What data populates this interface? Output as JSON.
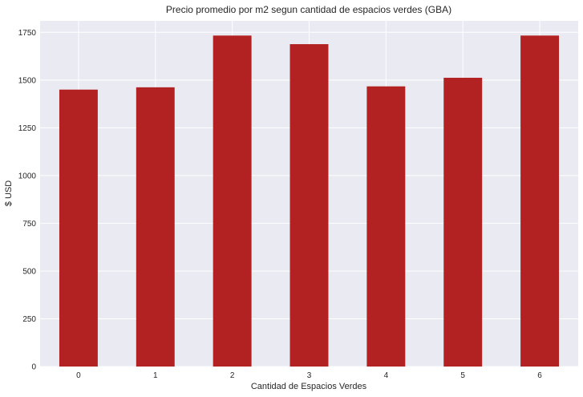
{
  "chart_data": {
    "type": "bar",
    "title": "Precio promedio por m2 segun cantidad de espacios verdes (GBA)",
    "xlabel": "Cantidad de Espacios Verdes",
    "ylabel": "$ USD",
    "categories": [
      "0",
      "1",
      "2",
      "3",
      "4",
      "5",
      "6"
    ],
    "values": [
      1450,
      1462,
      1733,
      1688,
      1467,
      1512,
      1733
    ],
    "ylim": [
      0,
      1810
    ],
    "yticks": [
      0,
      250,
      500,
      750,
      1000,
      1250,
      1500,
      1750
    ],
    "grid": true,
    "bar_color": "#b22222",
    "background_color": "#eaeaf2",
    "grid_color": "#ffffff"
  }
}
